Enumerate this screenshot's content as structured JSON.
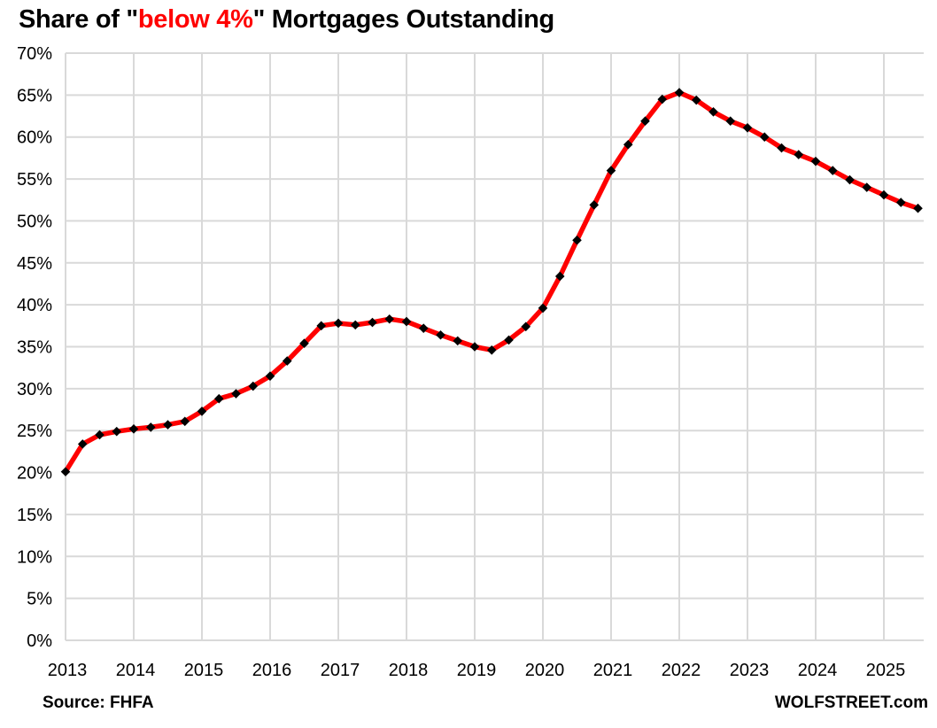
{
  "title": {
    "prefix": "Share of \"",
    "highlight": "below 4%",
    "suffix": "\" Mortgages Outstanding"
  },
  "footer": {
    "source": "Source: FHFA",
    "brand": "WOLFSTREET.com"
  },
  "colors": {
    "line": "#fe0000",
    "marker": "#000000",
    "gridline": "#d9d9d9",
    "text": "#000000",
    "title_highlight": "#ff0000",
    "background": "#ffffff"
  },
  "chart_data": {
    "type": "line",
    "title": "Share of \"below 4%\" Mortgages Outstanding",
    "xlabel": "",
    "ylabel": "",
    "ylim": [
      0,
      70
    ],
    "y_tick_step": 5,
    "y_tick_format": "percent",
    "grid": true,
    "legend_position": "none",
    "marker": "diamond",
    "x_tick_labels": [
      "2013",
      "2014",
      "2015",
      "2016",
      "2017",
      "2018",
      "2019",
      "2020",
      "2021",
      "2022",
      "2023",
      "2024",
      "2025"
    ],
    "x": [
      "2013 Q1",
      "2013 Q2",
      "2013 Q3",
      "2013 Q4",
      "2014 Q1",
      "2014 Q2",
      "2014 Q3",
      "2014 Q4",
      "2015 Q1",
      "2015 Q2",
      "2015 Q3",
      "2015 Q4",
      "2016 Q1",
      "2016 Q2",
      "2016 Q3",
      "2016 Q4",
      "2017 Q1",
      "2017 Q2",
      "2017 Q3",
      "2017 Q4",
      "2018 Q1",
      "2018 Q2",
      "2018 Q3",
      "2018 Q4",
      "2019 Q1",
      "2019 Q2",
      "2019 Q3",
      "2019 Q4",
      "2020 Q1",
      "2020 Q2",
      "2020 Q3",
      "2020 Q4",
      "2021 Q1",
      "2021 Q2",
      "2021 Q3",
      "2021 Q4",
      "2022 Q1",
      "2022 Q2",
      "2022 Q3",
      "2022 Q4",
      "2023 Q1",
      "2023 Q2",
      "2023 Q3",
      "2023 Q4",
      "2024 Q1",
      "2024 Q2",
      "2024 Q3",
      "2024 Q4",
      "2025 Q1",
      "2025 Q2",
      "2025 Q3"
    ],
    "series": [
      {
        "name": "Share of below-4% mortgages outstanding (%)",
        "values": [
          20.1,
          23.4,
          24.5,
          24.9,
          25.2,
          25.4,
          25.7,
          26.1,
          27.3,
          28.8,
          29.4,
          30.3,
          31.5,
          33.3,
          35.4,
          37.5,
          37.8,
          37.6,
          37.9,
          38.3,
          38.0,
          37.2,
          36.4,
          35.7,
          35.0,
          34.6,
          35.8,
          37.4,
          39.6,
          43.4,
          47.7,
          51.9,
          56.0,
          59.1,
          61.9,
          64.5,
          65.3,
          64.4,
          63.0,
          61.9,
          61.1,
          60.0,
          58.7,
          57.9,
          57.1,
          56.0,
          54.9,
          54.0,
          53.1,
          52.2,
          51.5
        ]
      }
    ]
  }
}
